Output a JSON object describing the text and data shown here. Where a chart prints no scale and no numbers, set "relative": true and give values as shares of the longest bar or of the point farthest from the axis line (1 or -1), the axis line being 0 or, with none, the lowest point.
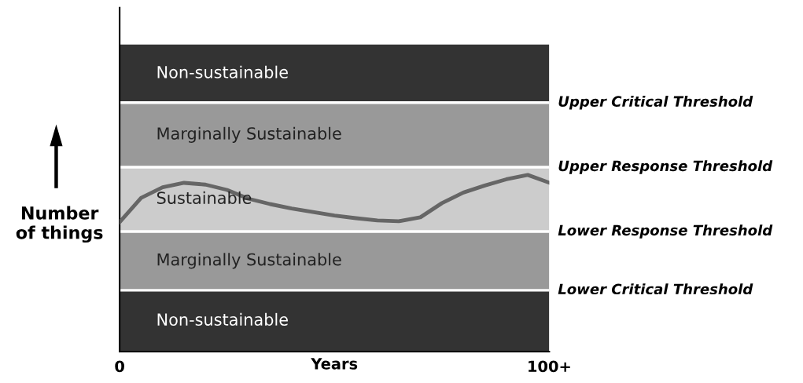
{
  "chart_data": {
    "type": "line",
    "relative": true,
    "xlabel": "Years",
    "ylabel": "Number\nof things",
    "categories": [
      "0",
      null,
      null,
      null,
      null,
      null,
      null,
      null,
      null,
      null,
      null,
      null,
      null,
      null,
      null,
      null,
      null,
      null,
      null,
      null,
      "100+"
    ],
    "series": [
      {
        "color": "#666666",
        "values": [
          0.733,
          0.87,
          0.93,
          0.955,
          0.945,
          0.915,
          0.865,
          0.835,
          0.81,
          0.79,
          0.77,
          0.755,
          0.742,
          0.738,
          0.76,
          0.84,
          0.9,
          0.94,
          0.975,
          1.0,
          0.956
        ]
      }
    ],
    "bands": [
      {
        "axis": "y",
        "from": 0,
        "to": 0.347,
        "label": "Non-sustainable",
        "color": "#333333"
      },
      {
        "axis": "y",
        "from": 0.347,
        "to": 0.68,
        "label": "Marginally Sustainable",
        "color": "#999999"
      },
      {
        "axis": "y",
        "from": 0.68,
        "to": 1.044,
        "label": "Sustainable",
        "color": "#cccccc"
      },
      {
        "axis": "y",
        "from": 1.044,
        "to": 1.409,
        "label": "Marginally Sustainable",
        "color": "#999999"
      },
      {
        "axis": "y",
        "from": 1.409,
        "to": 1.738,
        "label": "Non-sustainable",
        "color": "#333333"
      }
    ],
    "ref_lines": [
      {
        "axis": "y",
        "value": 0.347,
        "label": "Lower Critical Threshold",
        "color": "#ffffff"
      },
      {
        "axis": "y",
        "value": 0.68,
        "label": "Lower Response Threshold",
        "color": "#ffffff"
      },
      {
        "axis": "y",
        "value": 1.044,
        "label": "Upper Response Threshold",
        "color": "#ffffff"
      },
      {
        "axis": "y",
        "value": 1.409,
        "label": "Upper Critical Threshold",
        "color": "#ffffff"
      }
    ],
    "grid": false,
    "legend": false,
    "marker": "none",
    "line_style": "solid"
  }
}
